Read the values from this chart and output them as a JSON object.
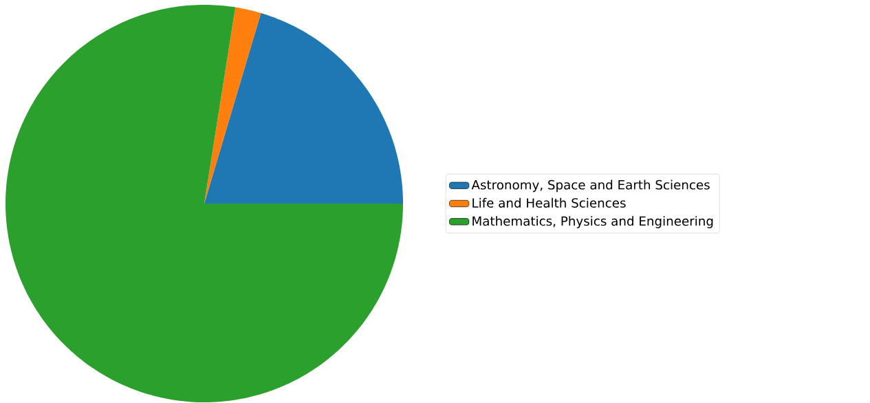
{
  "chart_data": {
    "type": "pie",
    "categories": [
      "Astronomy, Space and Earth Sciences",
      "Life and Health Sciences",
      "Mathematics, Physics and Engineering"
    ],
    "values": [
      20.4,
      2.1,
      77.5
    ],
    "colors": [
      "#1f77b4",
      "#ff7f0e",
      "#2ca02c"
    ],
    "legend": "right"
  }
}
